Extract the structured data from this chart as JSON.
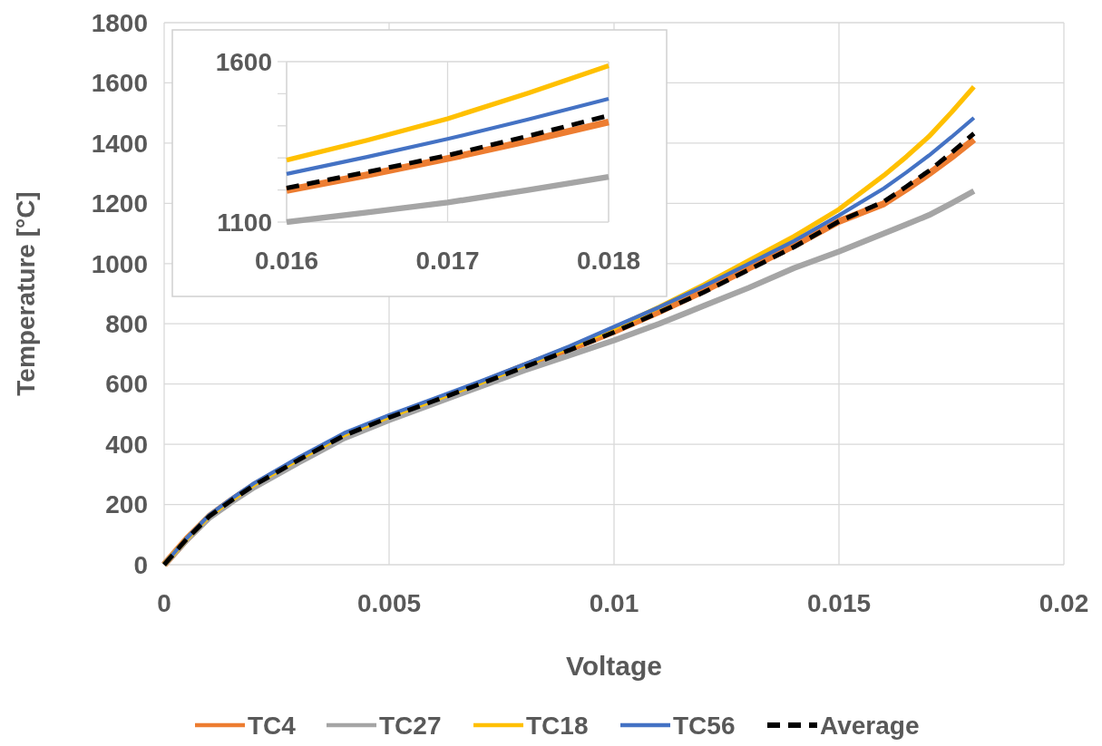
{
  "chart_data": [
    {
      "type": "line",
      "xlabel": "Voltage",
      "ylabel": "Temperature [°C]",
      "xlim": [
        0,
        0.02
      ],
      "ylim": [
        0,
        1800
      ],
      "xticks": [
        0,
        0.005,
        0.01,
        0.015,
        0.02
      ],
      "yticks": [
        0,
        200,
        400,
        600,
        800,
        1000,
        1200,
        1400,
        1600,
        1800
      ],
      "grid": true,
      "legend": "bottom",
      "x": [
        0,
        0.0005,
        0.001,
        0.0015,
        0.002,
        0.003,
        0.004,
        0.005,
        0.006,
        0.007,
        0.008,
        0.009,
        0.01,
        0.011,
        0.012,
        0.013,
        0.014,
        0.015,
        0.016,
        0.0165,
        0.017,
        0.0175,
        0.018
      ],
      "series": [
        {
          "name": "TC4",
          "color": "#ed7d31",
          "values": [
            0,
            85,
            160,
            214,
            264,
            349,
            429,
            489,
            544,
            600,
            660,
            715,
            775,
            840,
            910,
            985,
            1060,
            1140,
            1199,
            1247,
            1298,
            1353,
            1412
          ]
        },
        {
          "name": "TC27",
          "color": "#a5a5a5",
          "values": [
            0,
            82,
            155,
            208,
            257,
            340,
            420,
            480,
            535,
            590,
            645,
            695,
            745,
            800,
            860,
            920,
            985,
            1040,
            1100,
            1130,
            1161,
            1200,
            1241
          ]
        },
        {
          "name": "TC18",
          "color": "#ffc000",
          "values": [
            0,
            86,
            162,
            216,
            267,
            352,
            432,
            492,
            547,
            603,
            662,
            722,
            785,
            855,
            930,
            1010,
            1090,
            1180,
            1293,
            1355,
            1422,
            1502,
            1587
          ]
        },
        {
          "name": "TC56",
          "color": "#4472c4",
          "values": [
            0,
            88,
            165,
            220,
            271,
            357,
            437,
            497,
            552,
            607,
            665,
            725,
            790,
            855,
            925,
            1000,
            1075,
            1160,
            1250,
            1303,
            1359,
            1420,
            1484
          ]
        },
        {
          "name": "Average",
          "color": "#000000",
          "line_style": "dashed",
          "values": [
            0,
            85,
            160,
            214,
            264,
            349,
            429,
            489,
            544,
            599,
            656,
            712,
            772,
            838,
            905,
            980,
            1055,
            1140,
            1206,
            1256,
            1308,
            1368,
            1432
          ]
        }
      ]
    },
    {
      "type": "line",
      "xlim": [
        0.016,
        0.018
      ],
      "ylim": [
        1100,
        1600
      ],
      "xticks": [
        0.016,
        0.017,
        0.018
      ],
      "yticks": [
        1100,
        {
          "value": 1200,
          "label": null
        },
        {
          "value": 1300,
          "label": null
        },
        {
          "value": 1400,
          "label": null
        },
        {
          "value": 1500,
          "label": null
        },
        1600
      ],
      "grid": "x",
      "legend": false,
      "x": [
        0.016,
        0.0165,
        0.017,
        0.0175,
        0.018
      ],
      "series": [
        {
          "color": "#ed7d31",
          "values": [
            1199,
            1247,
            1298,
            1353,
            1412
          ]
        },
        {
          "color": "#a5a5a5",
          "values": [
            1100,
            1130,
            1161,
            1200,
            1241
          ]
        },
        {
          "color": "#ffc000",
          "values": [
            1293,
            1355,
            1422,
            1502,
            1587
          ]
        },
        {
          "color": "#4472c4",
          "values": [
            1250,
            1303,
            1359,
            1420,
            1484
          ]
        },
        {
          "color": "#000000",
          "line_style": "dashed",
          "values": [
            1206,
            1256,
            1308,
            1368,
            1432
          ]
        }
      ]
    }
  ]
}
